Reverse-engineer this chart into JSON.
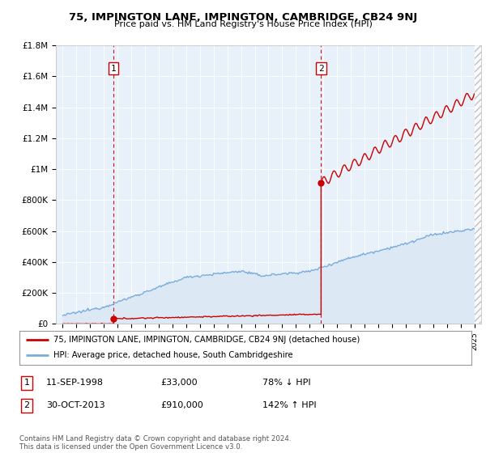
{
  "title": "75, IMPINGTON LANE, IMPINGTON, CAMBRIDGE, CB24 9NJ",
  "subtitle": "Price paid vs. HM Land Registry's House Price Index (HPI)",
  "xlim": [
    1994.5,
    2025.5
  ],
  "ylim": [
    0,
    1800000
  ],
  "yticks": [
    0,
    200000,
    400000,
    600000,
    800000,
    1000000,
    1200000,
    1400000,
    1600000,
    1800000
  ],
  "ytick_labels": [
    "£0",
    "£200K",
    "£400K",
    "£600K",
    "£800K",
    "£1M",
    "£1.2M",
    "£1.4M",
    "£1.6M",
    "£1.8M"
  ],
  "sale1_x": 1998.7,
  "sale1_y": 33000,
  "sale1_label": "1",
  "sale1_date": "11-SEP-1998",
  "sale1_price": "£33,000",
  "sale1_hpi": "78% ↓ HPI",
  "sale2_x": 2013.83,
  "sale2_y": 910000,
  "sale2_label": "2",
  "sale2_date": "30-OCT-2013",
  "sale2_price": "£910,000",
  "sale2_hpi": "142% ↑ HPI",
  "red_line_color": "#cc0000",
  "blue_line_color": "#7aacdc",
  "blue_fill_color": "#dce9f5",
  "marker_color": "#cc0000",
  "vline_color": "#cc0000",
  "legend_label_red": "75, IMPINGTON LANE, IMPINGTON, CAMBRIDGE, CB24 9NJ (detached house)",
  "legend_label_blue": "HPI: Average price, detached house, South Cambridgeshire",
  "footer": "Contains HM Land Registry data © Crown copyright and database right 2024.\nThis data is licensed under the Open Government Licence v3.0.",
  "background_color": "#ffffff",
  "plot_bg_color": "#e8f0fa",
  "grid_color": "#ffffff"
}
